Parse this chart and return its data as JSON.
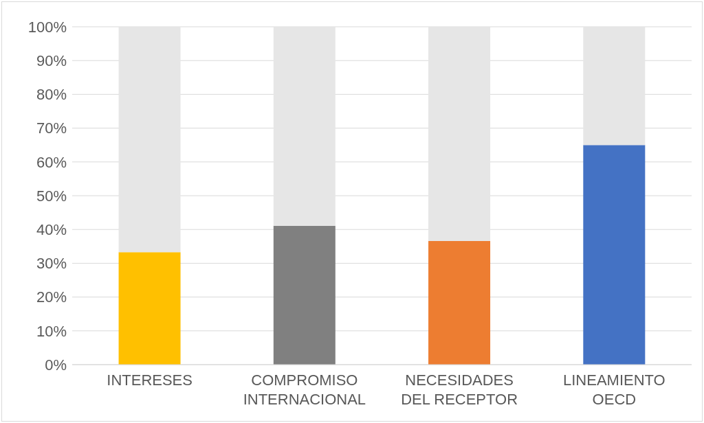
{
  "chart_data": {
    "type": "bar",
    "stacked": true,
    "categories": [
      "INTERESES",
      "COMPROMISO\nINTERNACIONAL",
      "NECESIDADES\nDEL RECEPTOR",
      "LINEAMIENTO\nOECD"
    ],
    "series": [
      {
        "colors": [
          "#ffc000",
          "#808080",
          "#ed7d31",
          "#4472c4"
        ],
        "values": [
          33.3,
          41.1,
          36.6,
          65.0
        ]
      },
      {
        "color": "#e6e6e6",
        "values": [
          66.7,
          58.9,
          63.4,
          35.0
        ]
      }
    ],
    "ylim": [
      0,
      100
    ],
    "yticks": [
      {
        "value": 0,
        "label": "0%"
      },
      {
        "value": 10,
        "label": "10%"
      },
      {
        "value": 20,
        "label": "20%"
      },
      {
        "value": 30,
        "label": "30%"
      },
      {
        "value": 40,
        "label": "40%"
      },
      {
        "value": 50,
        "label": "50%"
      },
      {
        "value": 60,
        "label": "60%"
      },
      {
        "value": 70,
        "label": "70%"
      },
      {
        "value": 80,
        "label": "80%"
      },
      {
        "value": 90,
        "label": "90%"
      },
      {
        "value": 100,
        "label": "100%"
      }
    ],
    "grid": "y",
    "legend": false
  }
}
